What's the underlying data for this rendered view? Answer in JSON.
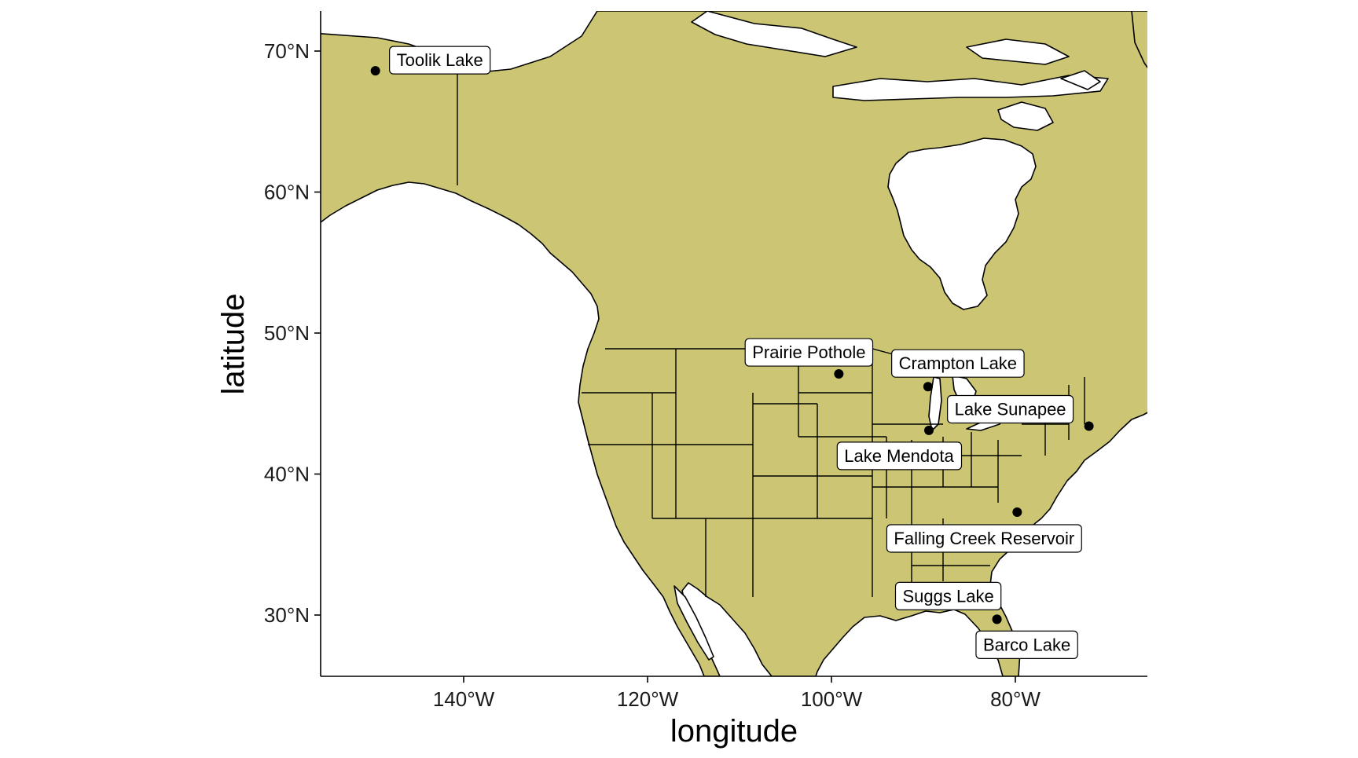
{
  "map": {
    "land_color": "#CCC674",
    "water_color": "#FFFFFF",
    "x_axis_title": "longitude",
    "y_axis_title": "latitude",
    "x_ticks": [
      {
        "value": -140,
        "label": "140°W"
      },
      {
        "value": -120,
        "label": "120°W"
      },
      {
        "value": -100,
        "label": "100°W"
      },
      {
        "value": -80,
        "label": "80°W"
      }
    ],
    "y_ticks": [
      {
        "value": 30,
        "label": "30°N"
      },
      {
        "value": 40,
        "label": "40°N"
      },
      {
        "value": 50,
        "label": "50°N"
      },
      {
        "value": 60,
        "label": "60°N"
      },
      {
        "value": 70,
        "label": "70°N"
      }
    ]
  },
  "sites": [
    {
      "name": "Toolik Lake",
      "lon": -149.6,
      "lat": 68.6
    },
    {
      "name": "Prairie Pothole",
      "lon": -99.2,
      "lat": 47.1
    },
    {
      "name": "Crampton Lake",
      "lon": -89.5,
      "lat": 46.2
    },
    {
      "name": "Lake Mendota",
      "lon": -89.4,
      "lat": 43.1
    },
    {
      "name": "Lake Sunapee",
      "lon": -72.0,
      "lat": 43.4
    },
    {
      "name": "Falling Creek Reservoir",
      "lon": -79.8,
      "lat": 37.3
    },
    {
      "name": "Suggs Lake",
      "lon": -82.0,
      "lat": 29.7
    },
    {
      "name": "Barco Lake",
      "lon": -82.0,
      "lat": 29.7
    }
  ]
}
